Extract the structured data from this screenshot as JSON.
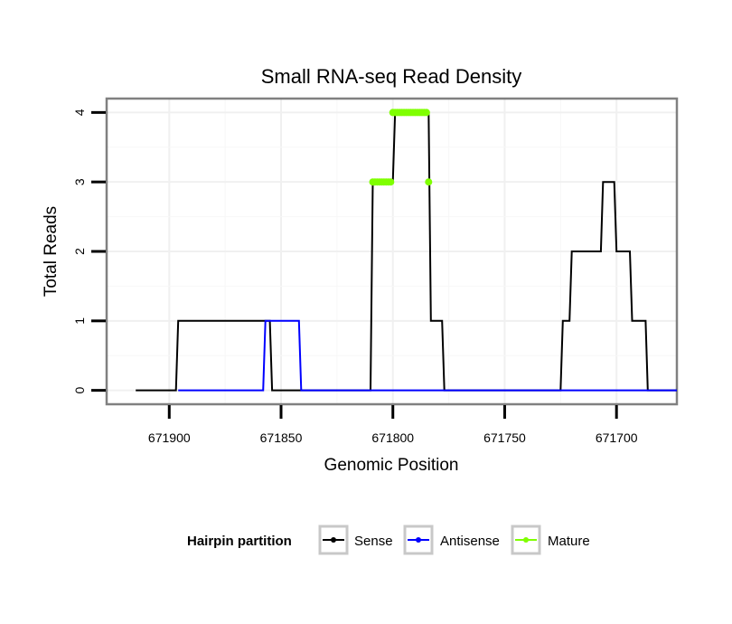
{
  "chart_data": {
    "type": "line",
    "title": "Small RNA-seq Read Density",
    "xlabel": "Genomic Position",
    "ylabel": "Total Reads",
    "xlim": [
      671928,
      671673
    ],
    "x_reversed": true,
    "ylim": [
      -0.2,
      4.2
    ],
    "x_ticks": [
      671900,
      671850,
      671800,
      671750,
      671700
    ],
    "x_tick_labels": [
      "671900",
      "671850",
      "671800",
      "671750",
      "671700"
    ],
    "y_ticks": [
      0,
      1,
      2,
      3,
      4
    ],
    "y_tick_labels": [
      "0",
      "1",
      "2",
      "3",
      "4"
    ],
    "grid": true,
    "legend": {
      "title": "Hairpin partition",
      "position": "bottom",
      "entries": [
        {
          "name": "Sense",
          "color": "#000000"
        },
        {
          "name": "Antisense",
          "color": "#0000ff"
        },
        {
          "name": "Mature",
          "color": "#7fff00"
        }
      ]
    },
    "series": [
      {
        "name": "Sense",
        "color": "#000000",
        "style": "line",
        "x": [
          671915,
          671897,
          671896,
          671857,
          671856,
          671855,
          671854,
          671810,
          671809,
          671800,
          671799,
          671784,
          671783,
          671778,
          671777,
          671773,
          671772,
          671725,
          671724,
          671721,
          671720,
          671707,
          671706,
          671701,
          671700,
          671694,
          671693,
          671687,
          671686,
          671673
        ],
        "values": [
          0,
          0,
          1,
          1,
          1,
          1,
          0,
          0,
          3,
          3,
          4,
          4,
          1,
          1,
          0,
          0,
          0,
          0,
          1,
          1,
          2,
          2,
          3,
          3,
          2,
          2,
          1,
          1,
          0,
          0
        ]
      },
      {
        "name": "Antisense",
        "color": "#0000ff",
        "style": "line",
        "x": [
          671896,
          671858,
          671857,
          671842,
          671841,
          671810,
          671809,
          671777,
          671776,
          671725,
          671724,
          671673
        ],
        "values": [
          0,
          0,
          1,
          1,
          0,
          0,
          0,
          0,
          0,
          0,
          0,
          0
        ]
      },
      {
        "name": "Mature",
        "color": "#7fff00",
        "style": "points",
        "x": [
          671809,
          671808,
          671807,
          671806,
          671805,
          671804,
          671803,
          671802,
          671801,
          671800,
          671799,
          671798,
          671797,
          671796,
          671795,
          671794,
          671793,
          671792,
          671791,
          671790,
          671789,
          671788,
          671787,
          671786,
          671785,
          671784
        ],
        "values": [
          3,
          3,
          3,
          3,
          3,
          3,
          3,
          3,
          3,
          4,
          4,
          4,
          4,
          4,
          4,
          4,
          4,
          4,
          4,
          4,
          4,
          4,
          4,
          4,
          4,
          3
        ]
      }
    ]
  }
}
